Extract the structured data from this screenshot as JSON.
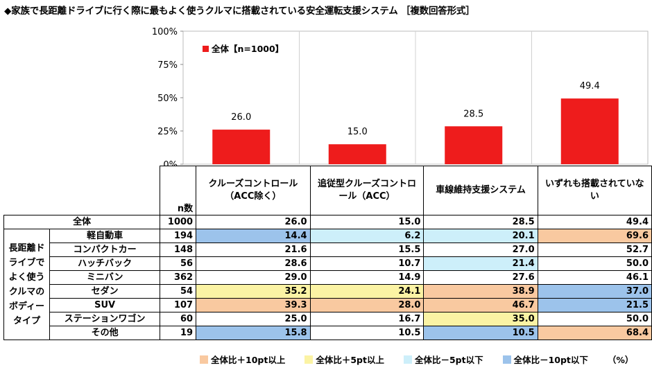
{
  "title": "◆家族で長距離ドライブに行く際に最もよく使うクルマに搭載されている安全運転支援システム ［複数回答形式］",
  "colors": {
    "bar": "#ee1c1c",
    "plus10": "#f9c9a0",
    "plus5": "#fbf3a4",
    "minus5": "#cdeffa",
    "minus10": "#9cc3eb"
  },
  "chart_data": {
    "type": "bar",
    "categories": [
      "クルーズコントロール（ACC除く）",
      "追従型クルーズコントロール（ACC）",
      "車線維持支援システム",
      "いずれも搭載されていない"
    ],
    "series": [
      {
        "name": "全体【n=1000】",
        "values": [
          26.0,
          15.0,
          28.5,
          49.4
        ]
      }
    ],
    "value_labels": [
      "26.0",
      "15.0",
      "28.5",
      "49.4"
    ],
    "yticks": [
      "0%",
      "25%",
      "50%",
      "75%",
      "100%"
    ],
    "ylim": [
      0,
      100
    ],
    "grid": false,
    "legend_position": "top-left"
  },
  "table": {
    "columns": [
      "クルーズコントロール（ACC除く）",
      "追従型クルーズコントロール（ACC）",
      "車線維持支援システム",
      "いずれも搭載されていない"
    ],
    "n_header": "n数",
    "group_label": "長距離ドライブでよく使うクルマのボディータイプ",
    "total": {
      "label": "全体",
      "n": "1000",
      "values": [
        "26.0",
        "15.0",
        "28.5",
        "49.4"
      ]
    },
    "rows": [
      {
        "label": "軽自動車",
        "n": "194",
        "values": [
          "14.4",
          "6.2",
          "20.1",
          "69.6"
        ],
        "colors": [
          "minus10",
          "minus5",
          "minus5",
          "plus10"
        ]
      },
      {
        "label": "コンパクトカー",
        "n": "148",
        "values": [
          "21.6",
          "15.5",
          "27.0",
          "52.7"
        ],
        "colors": [
          "",
          "",
          "",
          ""
        ]
      },
      {
        "label": "ハッチバック",
        "n": "56",
        "values": [
          "28.6",
          "10.7",
          "21.4",
          "50.0"
        ],
        "colors": [
          "",
          "",
          "minus5",
          ""
        ]
      },
      {
        "label": "ミニバン",
        "n": "362",
        "values": [
          "29.0",
          "14.9",
          "27.6",
          "46.1"
        ],
        "colors": [
          "",
          "",
          "",
          ""
        ]
      },
      {
        "label": "セダン",
        "n": "54",
        "values": [
          "35.2",
          "24.1",
          "38.9",
          "37.0"
        ],
        "colors": [
          "plus5",
          "plus5",
          "plus10",
          "minus10"
        ]
      },
      {
        "label": "SUV",
        "n": "107",
        "values": [
          "39.3",
          "28.0",
          "46.7",
          "21.5"
        ],
        "colors": [
          "plus10",
          "plus10",
          "plus10",
          "minus10"
        ]
      },
      {
        "label": "ステーションワゴン",
        "n": "60",
        "values": [
          "25.0",
          "16.7",
          "35.0",
          "50.0"
        ],
        "colors": [
          "",
          "",
          "plus5",
          ""
        ]
      },
      {
        "label": "その他",
        "n": "19",
        "values": [
          "15.8",
          "10.5",
          "10.5",
          "68.4"
        ],
        "colors": [
          "minus10",
          "",
          "minus10",
          "plus10"
        ]
      }
    ]
  },
  "legend_bottom": [
    {
      "label": "全体比＋10pt以上",
      "color": "plus10"
    },
    {
      "label": "全体比＋5pt以上",
      "color": "plus5"
    },
    {
      "label": "全体比－5pt以下",
      "color": "minus5"
    },
    {
      "label": "全体比－10pt以下",
      "color": "minus10"
    }
  ],
  "unit": "（%）"
}
